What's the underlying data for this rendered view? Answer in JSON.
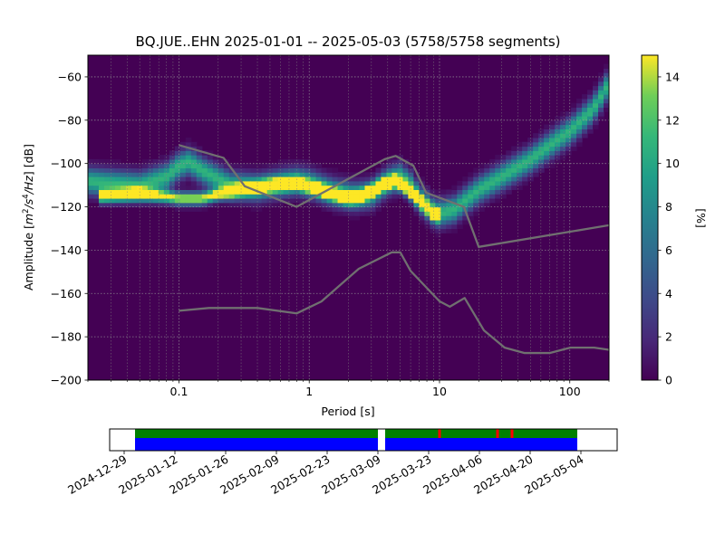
{
  "title": "BQ.JUE..EHN   2025-01-01 -- 2025-05-03  (5758/5758 segments)",
  "chart_data": [
    {
      "type": "heatmap",
      "title": "BQ.JUE..EHN   2025-01-01 -- 2025-05-03  (5758/5758 segments)",
      "xlabel": "Period [s]",
      "ylabel_parts": [
        "Amplitude [",
        "m",
        "2",
        "/s",
        "4",
        "/Hz",
        "] [dB]"
      ],
      "xscale": "log",
      "xlim": [
        0.02,
        200
      ],
      "ylim": [
        -200,
        -50
      ],
      "xticks": [
        {
          "value": 0.1,
          "label": "0.1"
        },
        {
          "value": 1,
          "label": "1"
        },
        {
          "value": 10,
          "label": "10"
        },
        {
          "value": 100,
          "label": "100"
        }
      ],
      "yticks": [
        -200,
        -180,
        -160,
        -140,
        -120,
        -100,
        -80,
        -60
      ],
      "grid": true,
      "colormap": "viridis",
      "colorbar": {
        "label": "[%]",
        "range": [
          0,
          15
        ],
        "ticks": [
          0,
          2,
          4,
          6,
          8,
          10,
          12,
          14
        ]
      },
      "density_ridges": [
        {
          "points": [
            [
              0.02,
              -108
            ],
            [
              0.03,
              -109
            ],
            [
              0.05,
              -110
            ],
            [
              0.08,
              -106
            ],
            [
              0.1,
              -101
            ],
            [
              0.12,
              -99
            ],
            [
              0.15,
              -103
            ],
            [
              0.25,
              -110
            ],
            [
              0.4,
              -111
            ],
            [
              0.6,
              -109
            ],
            [
              0.8,
              -108
            ],
            [
              1,
              -109
            ],
            [
              1.5,
              -113
            ],
            [
              2.2,
              -115
            ],
            [
              3,
              -114
            ],
            [
              4,
              -108
            ],
            [
              5,
              -106
            ],
            [
              6,
              -110
            ],
            [
              7,
              -116
            ],
            [
              9,
              -122
            ],
            [
              10,
              -123
            ],
            [
              13,
              -121
            ],
            [
              20,
              -112
            ],
            [
              30,
              -106
            ],
            [
              50,
              -98
            ],
            [
              80,
              -89
            ],
            [
              100,
              -85
            ],
            [
              150,
              -75
            ],
            [
              200,
              -63
            ]
          ],
          "peak": 11,
          "width": 4
        },
        {
          "points": [
            [
              0.025,
              -115
            ],
            [
              0.05,
              -114
            ],
            [
              0.08,
              -115
            ],
            [
              0.1,
              -116
            ],
            [
              0.15,
              -116
            ],
            [
              0.2,
              -114
            ],
            [
              0.3,
              -112
            ],
            [
              0.5,
              -110
            ],
            [
              0.8,
              -109
            ],
            [
              1.2,
              -112
            ],
            [
              2,
              -116
            ],
            [
              2.5,
              -115
            ],
            [
              3.5,
              -110
            ],
            [
              4.5,
              -108
            ],
            [
              5.5,
              -111
            ],
            [
              7,
              -117
            ],
            [
              9,
              -123
            ],
            [
              10,
              -124
            ]
          ],
          "peak": 15,
          "width": 2
        }
      ],
      "noise_models": [
        {
          "name": "",
          "points": [
            [
              0.1,
              -91.5
            ],
            [
              0.22,
              -97.4
            ],
            [
              0.32,
              -110.5
            ],
            [
              0.8,
              -120
            ],
            [
              3.8,
              -98
            ],
            [
              4.6,
              -96.5
            ],
            [
              6.3,
              -101
            ],
            [
              7.9,
              -113.5
            ],
            [
              15.4,
              -120
            ],
            [
              20,
              -138.5
            ],
            [
              200,
              -128.5
            ]
          ]
        },
        {
          "name": "",
          "points": [
            [
              0.1,
              -168
            ],
            [
              0.17,
              -166.7
            ],
            [
              0.4,
              -166.7
            ],
            [
              0.8,
              -169.2
            ],
            [
              1.24,
              -163.7
            ],
            [
              2.4,
              -148.6
            ],
            [
              4.3,
              -141
            ],
            [
              5,
              -141
            ],
            [
              6,
              -149.6
            ],
            [
              10,
              -163.6
            ],
            [
              12,
              -166.1
            ],
            [
              15.6,
              -162.1
            ],
            [
              21.9,
              -177
            ],
            [
              31.6,
              -185
            ],
            [
              45,
              -187.5
            ],
            [
              70,
              -187.5
            ],
            [
              101,
              -185
            ],
            [
              154,
              -185
            ],
            [
              200,
              -186
            ]
          ]
        }
      ]
    },
    {
      "type": "timeline",
      "xticks": [
        "2024-12-29",
        "2025-01-12",
        "2025-01-26",
        "2025-02-09",
        "2025-02-23",
        "2025-03-09",
        "2025-03-23",
        "2025-04-06",
        "2025-04-20",
        "2025-05-04"
      ],
      "xlim": [
        "2024-12-25",
        "2025-05-14"
      ],
      "coverage_segments": [
        [
          "2025-01-01",
          "2025-03-09"
        ],
        [
          "2025-03-11",
          "2025-05-03"
        ]
      ],
      "gap_markers": [
        "2025-03-26",
        "2025-04-11",
        "2025-04-15"
      ],
      "colors": {
        "data": "#008000",
        "processed": "#0000ff",
        "gap": "#ff0000"
      }
    }
  ]
}
